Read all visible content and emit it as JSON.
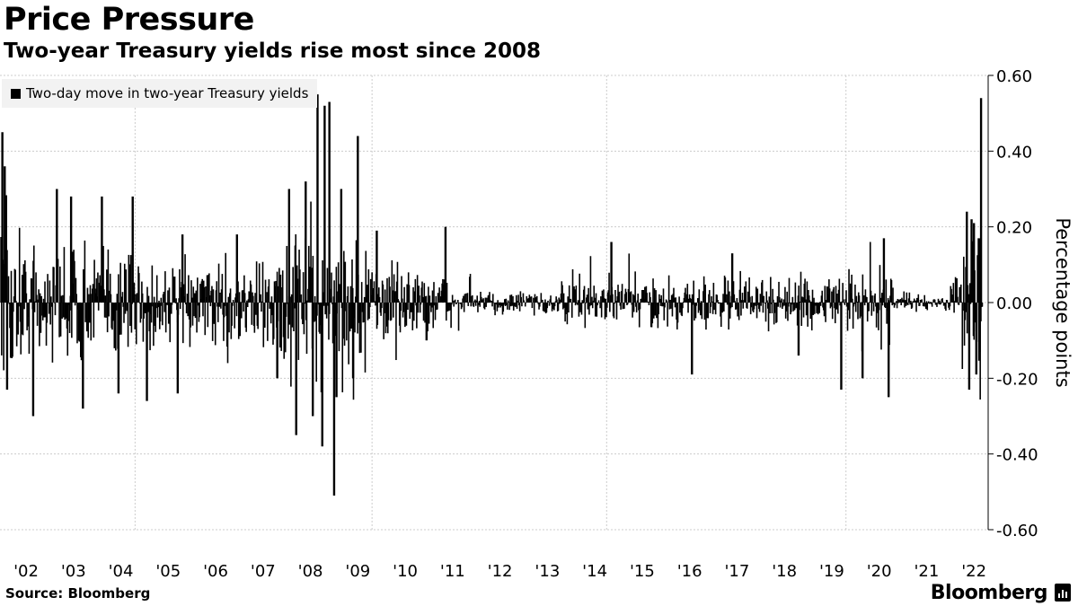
{
  "chart_data": {
    "type": "bar",
    "title": "Price Pressure",
    "subtitle": "Two-year Treasury yields rise most since 2008",
    "legend": "Two-day move in two-year Treasury yields",
    "ylabel": "Percentage points",
    "ylim": [
      -0.6,
      0.6
    ],
    "yticks": [
      0.6,
      0.4,
      0.2,
      0.0,
      -0.2,
      -0.4,
      -0.6
    ],
    "ytick_labels": [
      "0.60",
      "0.40",
      "0.20",
      "0.00",
      "-0.20",
      "-0.40",
      "-0.60"
    ],
    "xlim": [
      2001.45,
      2022.3
    ],
    "xticks": [
      2002,
      2003,
      2004,
      2005,
      2006,
      2007,
      2008,
      2009,
      2010,
      2011,
      2012,
      2013,
      2014,
      2015,
      2016,
      2017,
      2018,
      2019,
      2020,
      2021,
      2022
    ],
    "xtick_labels": [
      "'02",
      "'03",
      "'04",
      "'05",
      "'06",
      "'07",
      "'08",
      "'09",
      "'10",
      "'11",
      "'12",
      "'13",
      "'14",
      "'15",
      "'16",
      "'17",
      "'18",
      "'19",
      "'20",
      "'21",
      "'22"
    ],
    "gridline_years": [
      2004.3,
      2009.3,
      2014.25,
      2019.3
    ],
    "volatility_regimes": [
      {
        "start": 2001.45,
        "end": 2002.0,
        "amplitude": 0.13
      },
      {
        "start": 2002.0,
        "end": 2004.7,
        "amplitude": 0.09
      },
      {
        "start": 2004.7,
        "end": 2007.4,
        "amplitude": 0.065
      },
      {
        "start": 2007.4,
        "end": 2009.2,
        "amplitude": 0.13
      },
      {
        "start": 2009.2,
        "end": 2010.3,
        "amplitude": 0.06
      },
      {
        "start": 2010.3,
        "end": 2011.0,
        "amplitude": 0.045
      },
      {
        "start": 2011.0,
        "end": 2013.3,
        "amplitude": 0.018
      },
      {
        "start": 2013.3,
        "end": 2019.3,
        "amplitude": 0.04
      },
      {
        "start": 2019.3,
        "end": 2020.3,
        "amplitude": 0.055
      },
      {
        "start": 2020.3,
        "end": 2021.5,
        "amplitude": 0.012
      },
      {
        "start": 2021.5,
        "end": 2021.75,
        "amplitude": 0.035
      },
      {
        "start": 2021.75,
        "end": 2022.15,
        "amplitude": 0.09
      }
    ],
    "notable_moves": [
      {
        "x": 2001.5,
        "y": 0.45
      },
      {
        "x": 2001.55,
        "y": 0.36
      },
      {
        "x": 2001.6,
        "y": -0.23
      },
      {
        "x": 2002.15,
        "y": -0.3
      },
      {
        "x": 2002.65,
        "y": 0.3
      },
      {
        "x": 2002.95,
        "y": 0.28
      },
      {
        "x": 2003.2,
        "y": -0.28
      },
      {
        "x": 2003.6,
        "y": 0.28
      },
      {
        "x": 2003.95,
        "y": -0.24
      },
      {
        "x": 2004.25,
        "y": 0.28
      },
      {
        "x": 2004.55,
        "y": -0.26
      },
      {
        "x": 2005.2,
        "y": -0.24
      },
      {
        "x": 2005.3,
        "y": 0.18
      },
      {
        "x": 2006.45,
        "y": 0.18
      },
      {
        "x": 2007.3,
        "y": -0.2
      },
      {
        "x": 2007.55,
        "y": 0.3
      },
      {
        "x": 2007.7,
        "y": -0.35
      },
      {
        "x": 2007.9,
        "y": 0.32
      },
      {
        "x": 2008.05,
        "y": -0.3
      },
      {
        "x": 2008.15,
        "y": 0.55
      },
      {
        "x": 2008.3,
        "y": 0.52
      },
      {
        "x": 2008.4,
        "y": 0.53
      },
      {
        "x": 2008.25,
        "y": -0.38
      },
      {
        "x": 2008.5,
        "y": -0.51
      },
      {
        "x": 2008.55,
        "y": -0.25
      },
      {
        "x": 2008.65,
        "y": 0.3
      },
      {
        "x": 2008.9,
        "y": -0.2
      },
      {
        "x": 2009.0,
        "y": 0.44
      },
      {
        "x": 2009.4,
        "y": 0.19
      },
      {
        "x": 2010.45,
        "y": -0.1
      },
      {
        "x": 2010.85,
        "y": 0.2
      },
      {
        "x": 2014.35,
        "y": 0.16
      },
      {
        "x": 2016.05,
        "y": -0.19
      },
      {
        "x": 2016.9,
        "y": 0.13
      },
      {
        "x": 2018.3,
        "y": -0.14
      },
      {
        "x": 2019.2,
        "y": -0.23
      },
      {
        "x": 2019.65,
        "y": -0.2
      },
      {
        "x": 2020.1,
        "y": 0.17
      },
      {
        "x": 2020.2,
        "y": -0.25
      },
      {
        "x": 2021.85,
        "y": 0.24
      },
      {
        "x": 2021.9,
        "y": -0.23
      },
      {
        "x": 2021.95,
        "y": 0.22
      },
      {
        "x": 2022.0,
        "y": 0.21
      },
      {
        "x": 2022.05,
        "y": -0.19
      },
      {
        "x": 2022.1,
        "y": 0.17
      },
      {
        "x": 2022.12,
        "y": -0.13
      },
      {
        "x": 2022.15,
        "y": 0.54
      }
    ]
  },
  "source": "Source: Bloomberg",
  "brand": "Bloomberg",
  "colors": {
    "series": "#000000",
    "grid": "#cccccc",
    "legend_bg": "#f2f2f2"
  }
}
